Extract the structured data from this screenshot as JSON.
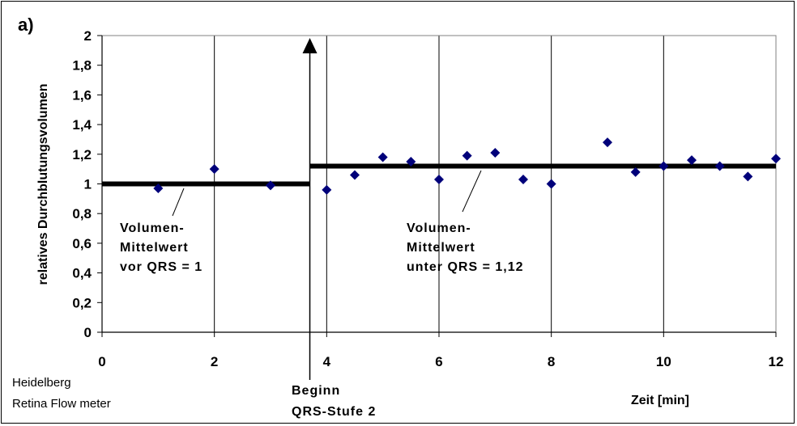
{
  "chart_data": {
    "type": "scatter",
    "panel_label": "a)",
    "xlabel": "Zeit [min]",
    "ylabel": "relatives Durchblutungsvolumen",
    "xlim": [
      0,
      12
    ],
    "ylim": [
      0,
      2
    ],
    "x_ticks": [
      "0",
      "2",
      "4",
      "6",
      "8",
      "10",
      "12"
    ],
    "y_ticks": [
      "0",
      "0,2",
      "0,4",
      "0,6",
      "0,8",
      "1",
      "1,2",
      "1,4",
      "1,6",
      "1,8",
      "2"
    ],
    "grid": "vertical",
    "marker_color": "#00007a",
    "series": [
      {
        "x": [
          1,
          2,
          3,
          4,
          4.5,
          5,
          5.5,
          6,
          6.5,
          7,
          7.5,
          8,
          9,
          9.5,
          10,
          10.5,
          11,
          11.5,
          12
        ],
        "y": [
          0.97,
          1.1,
          0.99,
          0.96,
          1.06,
          1.18,
          1.15,
          1.03,
          1.19,
          1.21,
          1.03,
          1.0,
          1.28,
          1.08,
          1.12,
          1.16,
          1.12,
          1.05,
          1.17
        ]
      }
    ],
    "mean_lines": [
      {
        "x_start": 0,
        "x_end": 3.7,
        "y": 1.0,
        "label_lines": [
          "Volumen-",
          "Mittelwert",
          "vor QRS = 1"
        ]
      },
      {
        "x_start": 3.7,
        "x_end": 12,
        "y": 1.12,
        "label_lines": [
          "Volumen-",
          "Mittelwert",
          "unter QRS = 1,12"
        ]
      }
    ],
    "event_marker": {
      "x": 3.7,
      "label_lines": [
        "Beginn",
        "QRS-Stufe 2"
      ]
    },
    "note_lines": [
      "Heidelberg",
      "Retina Flow meter"
    ]
  }
}
